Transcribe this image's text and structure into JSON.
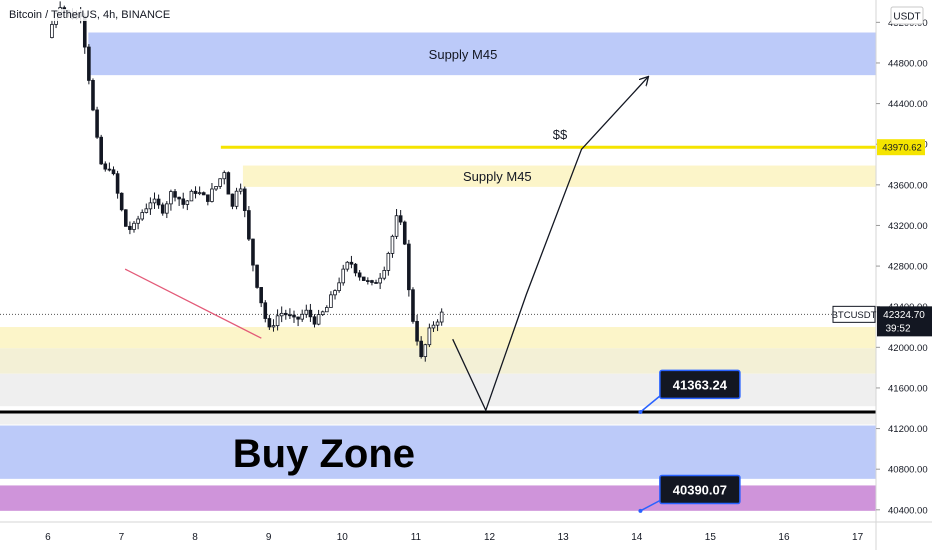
{
  "header": {
    "symbol_title": "Bitcoin / TetherUS, 4h, BINANCE",
    "currency_label": "USDT"
  },
  "chart_data": {
    "type": "candlestick",
    "x_ticks": [
      "6",
      "7",
      "8",
      "9",
      "10",
      "11",
      "12",
      "13",
      "14",
      "15",
      "16",
      "17"
    ],
    "y_ticks": [
      "45200.00",
      "44800.00",
      "44400.00",
      "44000.00",
      "43600.00",
      "43200.00",
      "42800.00",
      "42400.00",
      "42000.00",
      "41600.00",
      "41200.00",
      "40800.00",
      "40400.00"
    ],
    "ylim": [
      40280,
      45420
    ],
    "xlim": [
      5.35,
      17.25
    ],
    "grid": false,
    "close_path": [
      {
        "x": 6.0,
        "y": 45050
      },
      {
        "x": 6.15,
        "y": 45400
      },
      {
        "x": 6.3,
        "y": 45250
      },
      {
        "x": 6.45,
        "y": 45300
      },
      {
        "x": 6.55,
        "y": 44700
      },
      {
        "x": 6.65,
        "y": 44100
      },
      {
        "x": 6.75,
        "y": 43700
      },
      {
        "x": 6.85,
        "y": 43800
      },
      {
        "x": 6.95,
        "y": 43500
      },
      {
        "x": 7.05,
        "y": 43200
      },
      {
        "x": 7.15,
        "y": 43150
      },
      {
        "x": 7.25,
        "y": 43300
      },
      {
        "x": 7.4,
        "y": 43450
      },
      {
        "x": 7.55,
        "y": 43350
      },
      {
        "x": 7.7,
        "y": 43550
      },
      {
        "x": 7.85,
        "y": 43400
      },
      {
        "x": 8.0,
        "y": 43550
      },
      {
        "x": 8.15,
        "y": 43450
      },
      {
        "x": 8.3,
        "y": 43600
      },
      {
        "x": 8.4,
        "y": 43750
      },
      {
        "x": 8.5,
        "y": 43350
      },
      {
        "x": 8.6,
        "y": 43700
      },
      {
        "x": 8.65,
        "y": 43450
      },
      {
        "x": 8.75,
        "y": 42950
      },
      {
        "x": 8.85,
        "y": 42600
      },
      {
        "x": 8.95,
        "y": 42300
      },
      {
        "x": 9.0,
        "y": 42150
      },
      {
        "x": 9.1,
        "y": 42300
      },
      {
        "x": 9.2,
        "y": 42350
      },
      {
        "x": 9.35,
        "y": 42250
      },
      {
        "x": 9.5,
        "y": 42350
      },
      {
        "x": 9.65,
        "y": 42250
      },
      {
        "x": 9.8,
        "y": 42400
      },
      {
        "x": 9.95,
        "y": 42650
      },
      {
        "x": 10.1,
        "y": 42850
      },
      {
        "x": 10.25,
        "y": 42700
      },
      {
        "x": 10.4,
        "y": 42600
      },
      {
        "x": 10.55,
        "y": 42750
      },
      {
        "x": 10.65,
        "y": 43000
      },
      {
        "x": 10.75,
        "y": 43300
      },
      {
        "x": 10.85,
        "y": 43050
      },
      {
        "x": 10.92,
        "y": 42400
      },
      {
        "x": 11.0,
        "y": 42150
      },
      {
        "x": 11.08,
        "y": 41850
      },
      {
        "x": 11.15,
        "y": 42100
      },
      {
        "x": 11.25,
        "y": 42250
      },
      {
        "x": 11.35,
        "y": 42325
      }
    ],
    "last_price": {
      "value": "42324.70",
      "symbol": "BTCUSDT",
      "countdown": "39:52"
    },
    "zones": [
      {
        "label": "Supply M45",
        "y_range": [
          44680,
          45100
        ],
        "x_range": [
          6.55,
          17.25
        ],
        "color": "#bccaf9"
      },
      {
        "label": "Supply M45",
        "y_range": [
          43580,
          43790
        ],
        "x_range": [
          8.65,
          17.25
        ],
        "color": "#fcf5c9"
      },
      {
        "label": "",
        "y_range": [
          41990,
          42200
        ],
        "x_range": [
          5.35,
          17.25
        ],
        "color": "#fcf5c9"
      },
      {
        "label": "",
        "y_range": [
          41740,
          41990
        ],
        "x_range": [
          5.35,
          17.25
        ],
        "color": "#f3f0d6"
      },
      {
        "label": "",
        "y_range": [
          41420,
          41740
        ],
        "x_range": [
          5.35,
          17.25
        ],
        "color": "#efefef"
      },
      {
        "label": "",
        "y_range": [
          41240,
          41360
        ],
        "x_range": [
          5.35,
          17.25
        ],
        "color": "#efefef"
      },
      {
        "label": "",
        "y_range": [
          40705,
          41230
        ],
        "x_range": [
          5.35,
          17.25
        ],
        "color": "#bccaf9"
      },
      {
        "label": "",
        "y_range": [
          40390,
          40640
        ],
        "x_range": [
          5.35,
          17.25
        ],
        "color": "#cf94da"
      }
    ],
    "horizontal_lines": [
      {
        "label": "$$",
        "value": 43970.62,
        "price_label": "43970.62",
        "x_start": 8.35,
        "color": "#f5e400"
      },
      {
        "label": "",
        "value": 41363.24,
        "x_start": 5.35,
        "color": "#000000"
      }
    ],
    "annotations": [
      {
        "text": "Buy Zone",
        "x": 9.75,
        "y": 40960
      },
      {
        "text": "41363.24",
        "anchor_x": 14.05,
        "anchor_y": 41363,
        "box_x": 14.45,
        "box_y": 41635
      },
      {
        "text": "40390.07",
        "anchor_x": 14.05,
        "anchor_y": 40390,
        "box_x": 14.45,
        "box_y": 40600
      }
    ],
    "trendline": {
      "from": {
        "x": 7.05,
        "y": 42770
      },
      "to": {
        "x": 8.9,
        "y": 42090
      },
      "color": "#e35a78"
    },
    "projection": [
      {
        "x": 11.5,
        "y": 42080
      },
      {
        "x": 11.95,
        "y": 41380
      },
      {
        "x": 12.5,
        "y": 42520
      },
      {
        "x": 13.25,
        "y": 43950
      },
      {
        "x": 14.15,
        "y": 44660
      }
    ]
  }
}
